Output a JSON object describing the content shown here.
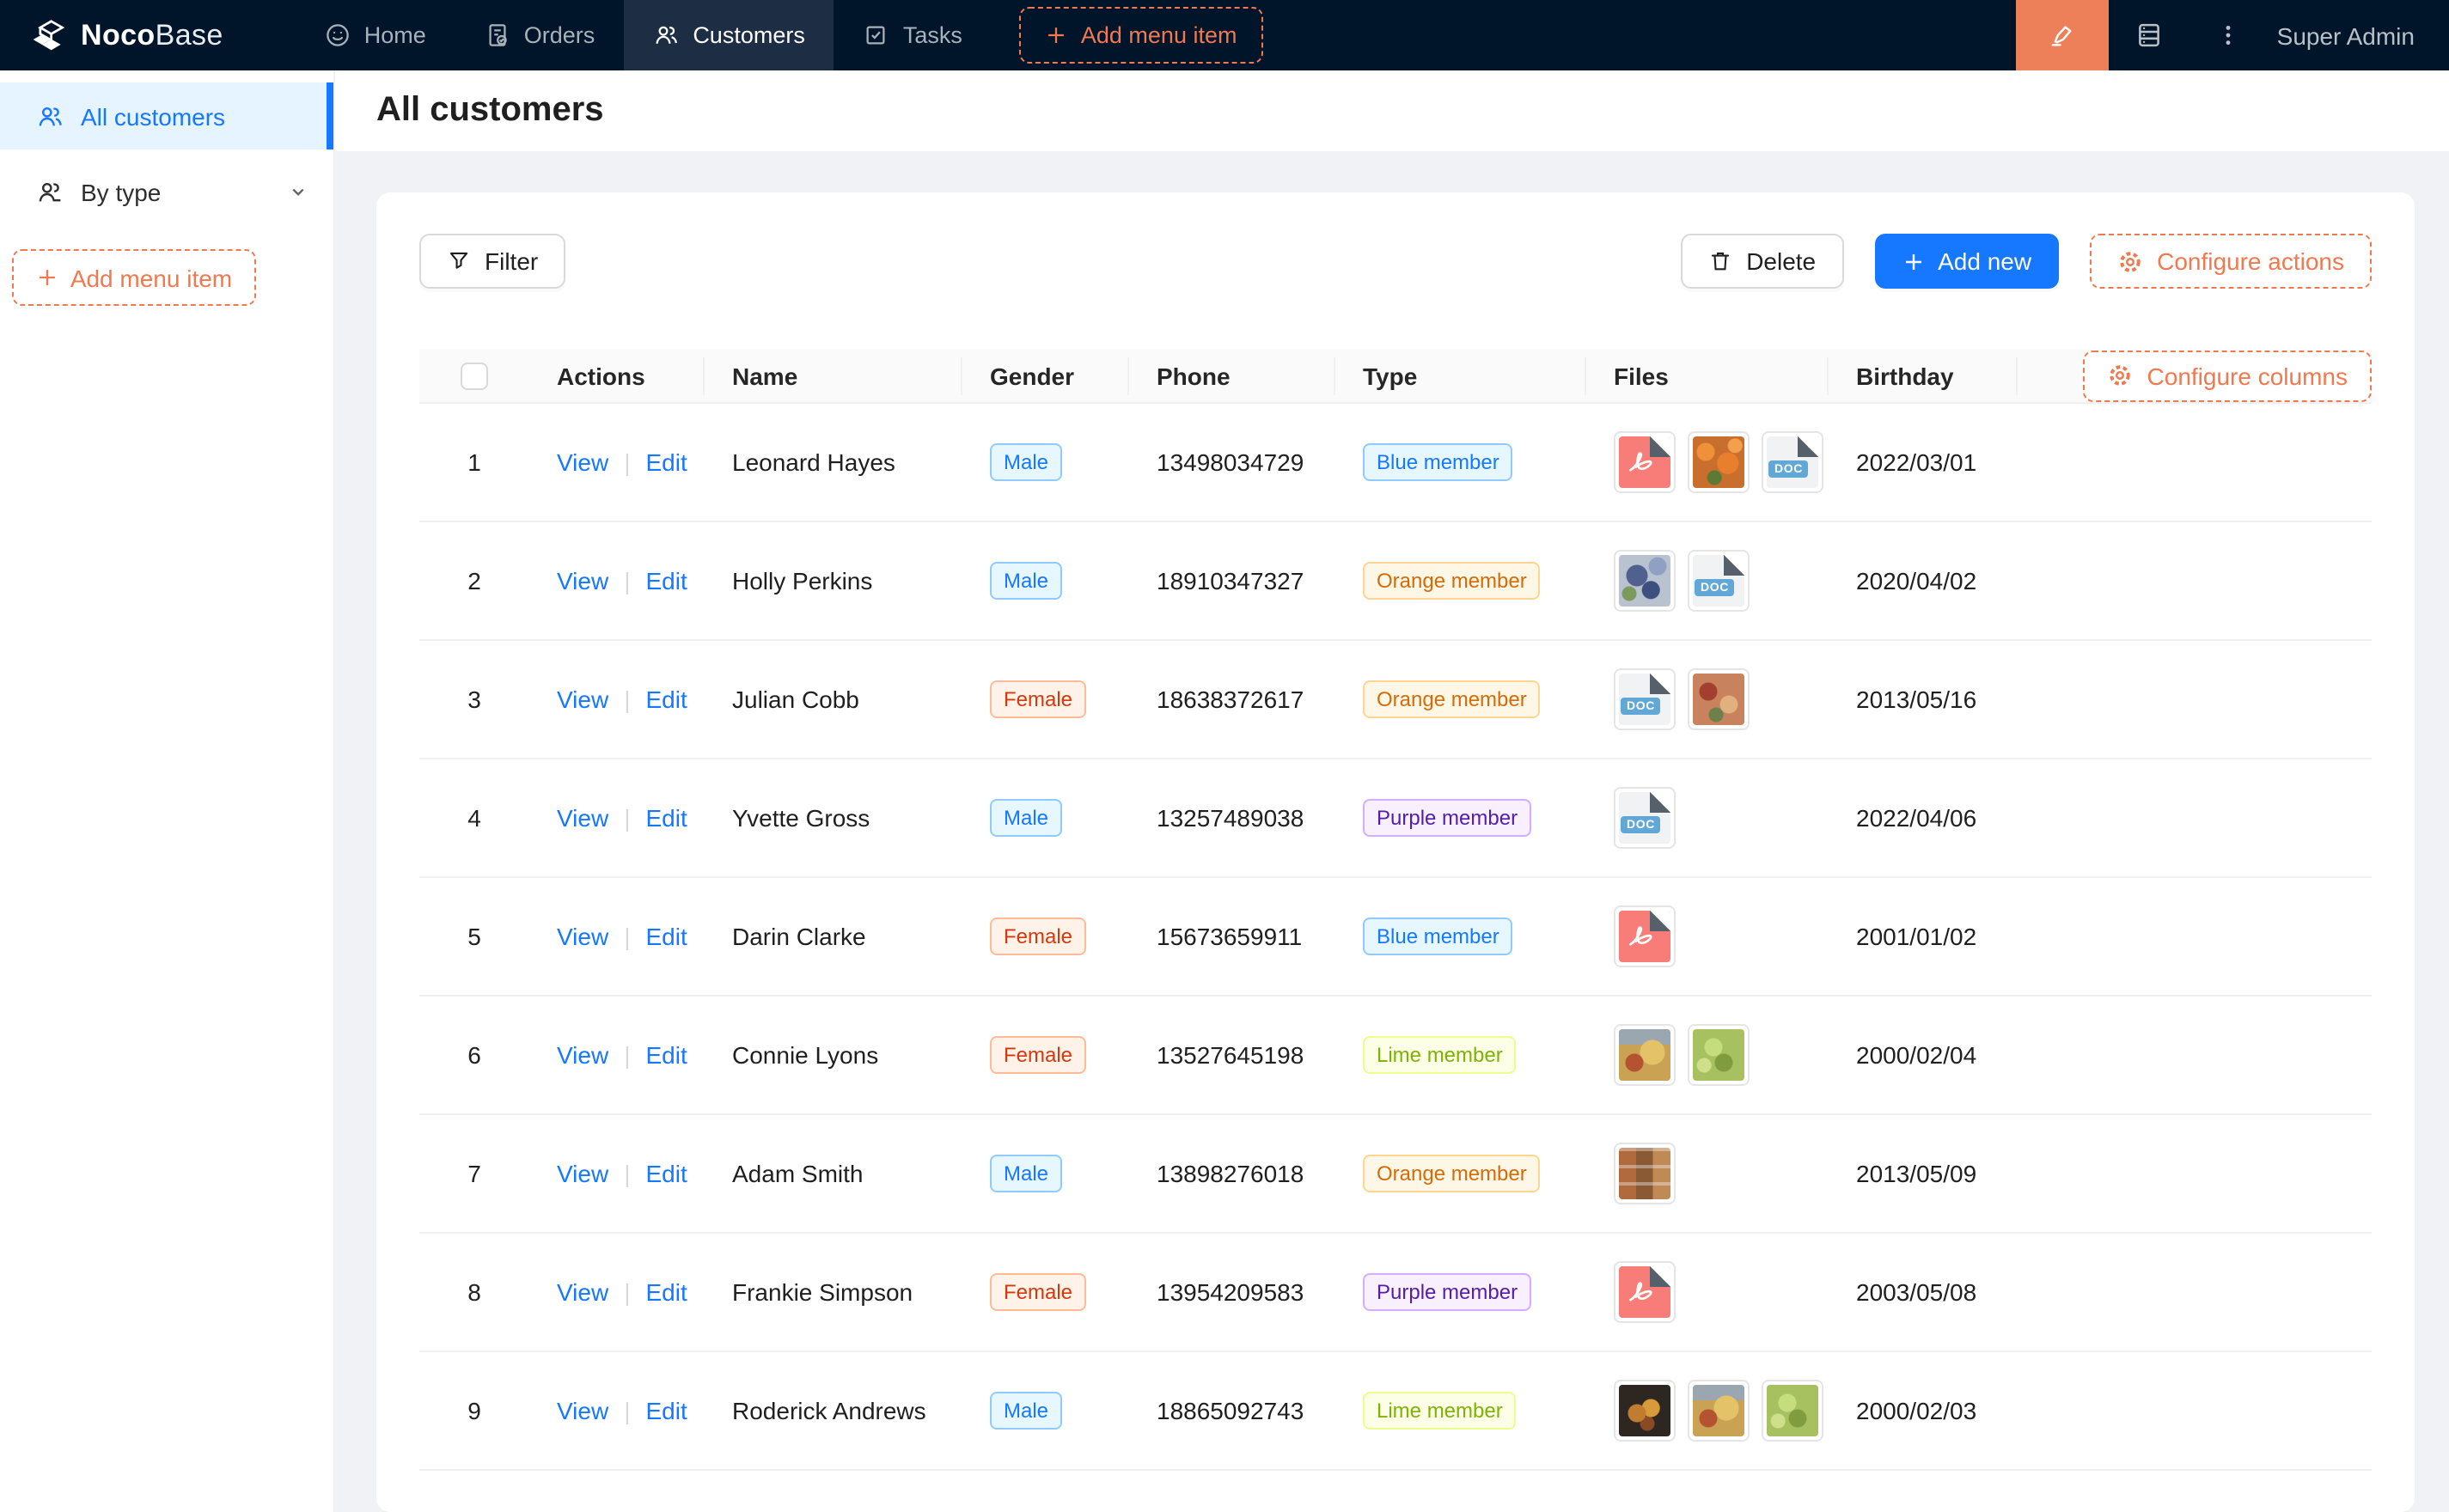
{
  "topnav": {
    "brand": {
      "bold": "Noco",
      "light": "Base",
      "logo_icon": "cube-logo-icon"
    },
    "items": [
      {
        "label": "Home",
        "icon": "smile-icon",
        "active": false
      },
      {
        "label": "Orders",
        "icon": "orders-document-icon",
        "active": false
      },
      {
        "label": "Customers",
        "icon": "team-icon",
        "active": true
      },
      {
        "label": "Tasks",
        "icon": "check-square-icon",
        "active": false
      }
    ],
    "add_menu_item_label": "Add menu item",
    "right": {
      "designer_button_icon": "highlighter-icon",
      "mobile_button_icon": "server-icon",
      "more_button_icon": "ellipsis-vertical-icon",
      "user_label": "Super Admin"
    }
  },
  "sidebar": {
    "items": [
      {
        "label": "All customers",
        "icon": "team-icon",
        "active": true
      },
      {
        "label": "By type",
        "icon": "usergroup-icon",
        "chevron": "chevron-down-icon",
        "active": false
      }
    ],
    "add_menu_item_label": "Add menu item"
  },
  "page": {
    "title": "All customers"
  },
  "toolbar": {
    "filter_label": "Filter",
    "delete_label": "Delete",
    "add_new_label": "Add new",
    "configure_actions_label": "Configure actions"
  },
  "table": {
    "columns": {
      "actions": "Actions",
      "name": "Name",
      "gender": "Gender",
      "phone": "Phone",
      "type": "Type",
      "files": "Files",
      "birthday": "Birthday"
    },
    "configure_columns_label": "Configure columns",
    "actions": {
      "view": "View",
      "edit": "Edit"
    },
    "file_doc_label": "DOC",
    "rows": [
      {
        "index": 1,
        "name": "Leonard Hayes",
        "gender": "Male",
        "phone": "13498034729",
        "type": "Blue member",
        "files": [
          "pdf",
          "image-oranges",
          "doc"
        ],
        "birthday": "2022/03/01"
      },
      {
        "index": 2,
        "name": "Holly Perkins",
        "gender": "Male",
        "phone": "18910347327",
        "type": "Orange member",
        "files": [
          "image-grapes-blue",
          "doc"
        ],
        "birthday": "2020/04/02"
      },
      {
        "index": 3,
        "name": "Julian Cobb",
        "gender": "Female",
        "phone": "18638372617",
        "type": "Orange member",
        "files": [
          "doc",
          "image-food"
        ],
        "birthday": "2013/05/16"
      },
      {
        "index": 4,
        "name": "Yvette Gross",
        "gender": "Male",
        "phone": "13257489038",
        "type": "Purple member",
        "files": [
          "doc"
        ],
        "birthday": "2022/04/06"
      },
      {
        "index": 5,
        "name": "Darin Clarke",
        "gender": "Female",
        "phone": "15673659911",
        "type": "Blue member",
        "files": [
          "pdf"
        ],
        "birthday": "2001/01/02"
      },
      {
        "index": 6,
        "name": "Connie Lyons",
        "gender": "Female",
        "phone": "13527645198",
        "type": "Lime member",
        "files": [
          "image-fruit",
          "image-green-grapes"
        ],
        "birthday": "2000/02/04"
      },
      {
        "index": 7,
        "name": "Adam Smith",
        "gender": "Male",
        "phone": "13898276018",
        "type": "Orange member",
        "files": [
          "image-food-collage"
        ],
        "birthday": "2013/05/09"
      },
      {
        "index": 8,
        "name": "Frankie Simpson",
        "gender": "Female",
        "phone": "13954209583",
        "type": "Purple member",
        "files": [
          "pdf"
        ],
        "birthday": "2003/05/08"
      },
      {
        "index": 9,
        "name": "Roderick Andrews",
        "gender": "Male",
        "phone": "18865092743",
        "type": "Lime member",
        "files": [
          "image-fruit-dark",
          "image-fruit",
          "image-green-grapes"
        ],
        "birthday": "2000/02/03"
      }
    ]
  },
  "colors": {
    "nav_bg": "#001529",
    "nav_active_bg": "#1d2d43",
    "primary_blue": "#1677ff",
    "designer_orange_bg": "#ee8059",
    "dashed_orange": "#f0794f",
    "sidebar_active_bg": "#e6f4ff",
    "tag_blue_text": "#1677ff",
    "tag_volcano_text": "#d4380d",
    "tag_orange_text": "#d46b08",
    "tag_purple_text": "#531dab",
    "tag_lime_text": "#7cb305",
    "content_bg": "#f0f2f5"
  }
}
